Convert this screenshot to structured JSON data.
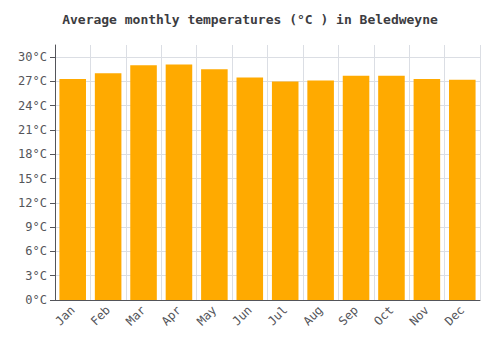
{
  "chart_data": {
    "type": "bar",
    "title": "Average monthly temperatures (°C ) in Beledweyne",
    "categories": [
      "Jan",
      "Feb",
      "Mar",
      "Apr",
      "May",
      "Jun",
      "Jul",
      "Aug",
      "Sep",
      "Oct",
      "Nov",
      "Dec"
    ],
    "values": [
      27.3,
      28.0,
      29.0,
      29.1,
      28.5,
      27.5,
      27.0,
      27.1,
      27.7,
      27.7,
      27.3,
      27.2
    ],
    "color": "#FFAA00",
    "ylim": [
      0,
      31.5
    ],
    "yticks": [
      {
        "value": 0,
        "label": "0°C"
      },
      {
        "value": 3,
        "label": "3°C"
      },
      {
        "value": 6,
        "label": "6°C"
      },
      {
        "value": 9,
        "label": "9°C"
      },
      {
        "value": 12,
        "label": "12°C"
      },
      {
        "value": 15,
        "label": "15°C"
      },
      {
        "value": 18,
        "label": "18°C"
      },
      {
        "value": 21,
        "label": "21°C"
      },
      {
        "value": 24,
        "label": "24°C"
      },
      {
        "value": 27,
        "label": "27°C"
      },
      {
        "value": 30,
        "label": "30°C"
      }
    ],
    "grid": true
  }
}
